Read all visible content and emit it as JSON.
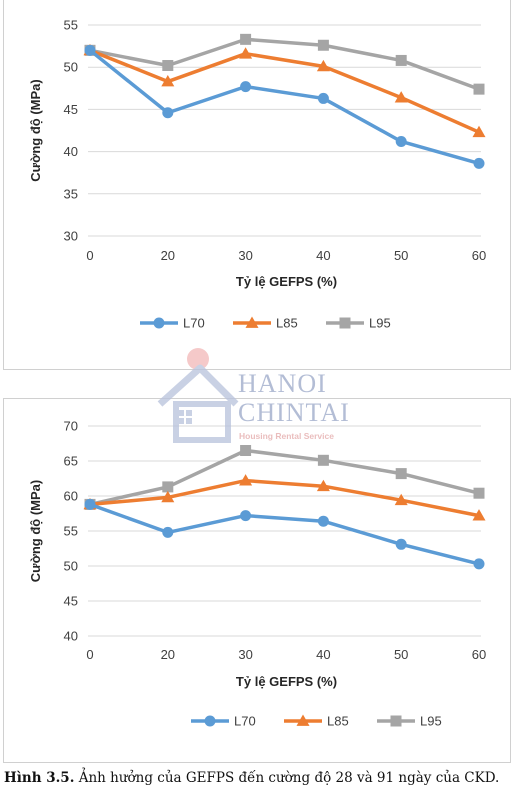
{
  "chart_data": [
    {
      "type": "line",
      "x": [
        0,
        20,
        30,
        40,
        50,
        60
      ],
      "xlabel": "Tỷ lệ GEFPS (%)",
      "ylabel": "Cường độ (MPa)",
      "ylim": [
        30,
        55
      ],
      "yticks": [
        30,
        35,
        40,
        45,
        50,
        55
      ],
      "grid": true,
      "legend_position": "bottom",
      "series": [
        {
          "name": "L70",
          "color": "#5b9bd5",
          "marker": "circle",
          "values": [
            52.0,
            44.6,
            47.7,
            46.3,
            41.2,
            38.6
          ]
        },
        {
          "name": "L85",
          "color": "#ed7d31",
          "marker": "triangle",
          "values": [
            52.0,
            48.3,
            51.6,
            50.1,
            46.4,
            42.3
          ]
        },
        {
          "name": "L95",
          "color": "#a5a5a5",
          "marker": "square",
          "values": [
            52.0,
            50.2,
            53.3,
            52.6,
            50.8,
            47.4
          ]
        }
      ]
    },
    {
      "type": "line",
      "x": [
        0,
        20,
        30,
        40,
        50,
        60
      ],
      "xlabel": "Tỷ lệ GEFPS (%)",
      "ylabel": "Cường độ (MPa)",
      "ylim": [
        40,
        70
      ],
      "yticks": [
        40,
        45,
        50,
        55,
        60,
        65,
        70
      ],
      "grid": true,
      "legend_position": "bottom",
      "series": [
        {
          "name": "L70",
          "color": "#5b9bd5",
          "marker": "circle",
          "values": [
            58.8,
            54.8,
            57.2,
            56.4,
            53.1,
            50.3
          ]
        },
        {
          "name": "L85",
          "color": "#ed7d31",
          "marker": "triangle",
          "values": [
            58.8,
            59.8,
            62.2,
            61.4,
            59.4,
            57.2
          ]
        },
        {
          "name": "L95",
          "color": "#a5a5a5",
          "marker": "square",
          "values": [
            58.8,
            61.3,
            66.5,
            65.1,
            63.2,
            60.4
          ]
        }
      ]
    }
  ],
  "caption": {
    "label": "Hình 3.5.",
    "text": " Ảnh hưởng của GEFPS đến cường độ 28 và 91 ngày của CKD."
  },
  "watermark": {
    "line1": "HANOI",
    "line2": "CHINTAI",
    "line3": "Housing Rental Service"
  }
}
